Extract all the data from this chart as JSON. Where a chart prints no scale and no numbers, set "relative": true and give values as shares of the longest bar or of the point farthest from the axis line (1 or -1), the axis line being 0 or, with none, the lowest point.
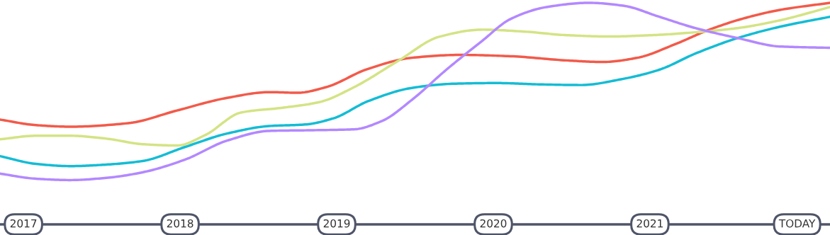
{
  "chart_data": {
    "type": "line",
    "relative": true,
    "grid": false,
    "legend": false,
    "marker": "none",
    "line_style": "solid",
    "tick_labels": "x",
    "xlim": [
      2016.85,
      2022.15
    ],
    "xticks": [
      2017,
      2018,
      2019,
      2020,
      2021,
      {
        "value": 2021.94,
        "label": "TODAY"
      }
    ],
    "series": [
      {
        "color": "#f25a4a",
        "x": [
          2016.85,
          2017.08,
          2017.3,
          2017.67,
          2017.98,
          2018.3,
          2018.57,
          2018.75,
          2018.93,
          2019.2,
          2019.48,
          2019.79,
          2020.11,
          2020.47,
          2020.7,
          2020.92,
          2021.15,
          2021.38,
          2021.6,
          2021.83,
          2022.15
        ],
        "values": [
          0.473,
          0.448,
          0.441,
          0.457,
          0.514,
          0.571,
          0.597,
          0.594,
          0.619,
          0.702,
          0.752,
          0.765,
          0.759,
          0.74,
          0.733,
          0.752,
          0.81,
          0.879,
          0.93,
          0.968,
          1
        ]
      },
      {
        "color": "#d4e384",
        "x": [
          2016.85,
          2017.08,
          2017.3,
          2017.53,
          2017.76,
          2017.98,
          2018.16,
          2018.39,
          2018.66,
          2018.89,
          2019.11,
          2019.39,
          2019.66,
          2019.93,
          2020.2,
          2020.47,
          2020.74,
          2021.01,
          2021.29,
          2021.56,
          2021.83,
          2022.15
        ],
        "values": [
          0.384,
          0.4,
          0.4,
          0.387,
          0.362,
          0.356,
          0.403,
          0.505,
          0.527,
          0.552,
          0.619,
          0.737,
          0.848,
          0.879,
          0.87,
          0.854,
          0.848,
          0.854,
          0.867,
          0.886,
          0.921,
          0.981
        ]
      },
      {
        "color": "#14bcd4",
        "x": [
          2016.85,
          2017.08,
          2017.3,
          2017.53,
          2017.76,
          2018.03,
          2018.3,
          2018.57,
          2018.8,
          2018.98,
          2019.2,
          2019.48,
          2019.75,
          2020.02,
          2020.29,
          2020.56,
          2020.83,
          2021.06,
          2021.29,
          2021.56,
          2021.83,
          2022.15
        ],
        "values": [
          0.308,
          0.273,
          0.263,
          0.27,
          0.286,
          0.349,
          0.41,
          0.444,
          0.451,
          0.479,
          0.556,
          0.616,
          0.635,
          0.638,
          0.632,
          0.629,
          0.657,
          0.698,
          0.771,
          0.841,
          0.892,
          0.937
        ]
      },
      {
        "color": "#b388ff",
        "x": [
          2016.85,
          2017.08,
          2017.3,
          2017.53,
          2017.76,
          2018.03,
          2018.3,
          2018.57,
          2018.84,
          2019.11,
          2019.29,
          2019.48,
          2019.7,
          2019.93,
          2020.11,
          2020.34,
          2020.61,
          2020.83,
          2021.06,
          2021.29,
          2021.56,
          2021.83,
          2022.15
        ],
        "values": [
          0.229,
          0.206,
          0.2,
          0.21,
          0.235,
          0.292,
          0.378,
          0.422,
          0.425,
          0.429,
          0.467,
          0.562,
          0.698,
          0.829,
          0.927,
          0.981,
          1.0,
          0.987,
          0.937,
          0.886,
          0.841,
          0.803,
          0.797
        ]
      }
    ]
  }
}
